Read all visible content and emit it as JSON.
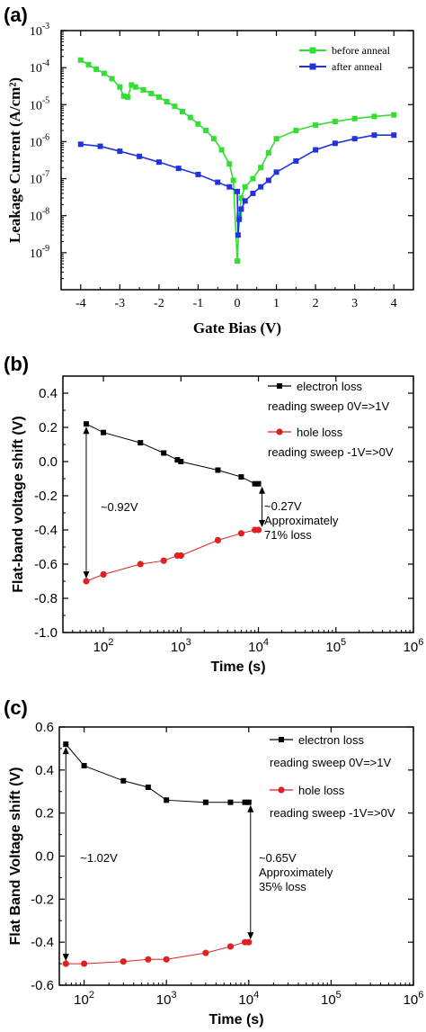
{
  "chart_data": [
    {
      "panel_label": "(a)",
      "type": "line",
      "xlabel": "Gate Bias (V)",
      "ylabel": "Leakage Current  (A/cm²)",
      "xlim": [
        -4.5,
        4.5
      ],
      "ylim": [
        1e-10,
        0.001
      ],
      "yscale": "log",
      "xticks": [
        -4,
        -3,
        -2,
        -1,
        0,
        1,
        2,
        3,
        4
      ],
      "yticks": [
        "10-3",
        "10-4",
        "10-5",
        "10-6",
        "10-7",
        "10-8",
        "10-9"
      ],
      "legend_position": "top-right",
      "series": [
        {
          "name": "before anneal",
          "color": "#33dd33",
          "marker": "square",
          "x": [
            -4,
            -3.8,
            -3.6,
            -3.4,
            -3.2,
            -3.0,
            -2.9,
            -2.8,
            -2.7,
            -2.6,
            -2.4,
            -2.2,
            -2.0,
            -1.8,
            -1.6,
            -1.4,
            -1.2,
            -1.0,
            -0.8,
            -0.6,
            -0.4,
            -0.2,
            -0.1,
            0.0,
            0.05,
            0.1,
            0.2,
            0.4,
            0.6,
            0.8,
            1.0,
            1.5,
            2.0,
            2.5,
            3.0,
            3.5,
            4.0
          ],
          "y": [
            0.00016,
            0.00012,
            9e-05,
            7e-05,
            5e-05,
            3e-05,
            1.7e-05,
            1.6e-05,
            3.4e-05,
            3e-05,
            2.5e-05,
            2e-05,
            1.6e-05,
            1.2e-05,
            9e-06,
            6.5e-06,
            4.5e-06,
            3e-06,
            2e-06,
            1.2e-06,
            6e-07,
            2.5e-07,
            9e-08,
            6e-10,
            1e-08,
            3e-08,
            6e-08,
            1e-07,
            2e-07,
            5e-07,
            1.2e-06,
            2e-06,
            2.8e-06,
            3.5e-06,
            4.2e-06,
            4.8e-06,
            5.3e-06
          ]
        },
        {
          "name": "after anneal",
          "color": "#2233dd",
          "marker": "square",
          "x": [
            -4,
            -3.5,
            -3.0,
            -2.5,
            -2.0,
            -1.5,
            -1.0,
            -0.5,
            -0.2,
            0.0,
            0.02,
            0.05,
            0.1,
            0.2,
            0.4,
            0.6,
            0.8,
            1.0,
            1.5,
            2.0,
            2.5,
            3.0,
            3.5,
            4.0
          ],
          "y": [
            8.5e-07,
            7.5e-07,
            5.5e-07,
            4e-07,
            2.8e-07,
            1.9e-07,
            1.3e-07,
            8e-08,
            6e-08,
            4.5e-08,
            3e-09,
            8e-09,
            1.5e-08,
            2.5e-08,
            4e-08,
            6e-08,
            9e-08,
            1.5e-07,
            3e-07,
            6e-07,
            9e-07,
            1.2e-06,
            1.5e-06,
            1.5e-06
          ]
        }
      ]
    },
    {
      "panel_label": "(b)",
      "type": "line",
      "xlabel": "Time (s)",
      "ylabel": "Flat-band voltage shift (V)",
      "xscale": "log",
      "xlim": [
        30,
        1000000.0
      ],
      "ylim": [
        -1.0,
        0.5
      ],
      "yticks": [
        "0.4",
        "0.2",
        "0.0",
        "-0.2",
        "-0.4",
        "-0.6",
        "-0.8",
        "-1.0"
      ],
      "xticks": [
        "10^2",
        "10^3",
        "10^4",
        "10^5",
        "10^6"
      ],
      "legend_position": "top-right",
      "series": [
        {
          "name": "electron loss",
          "color": "#000000",
          "marker": "square",
          "x": [
            60,
            100,
            300,
            600,
            900,
            1000,
            3000,
            6000,
            9000,
            10000
          ],
          "y": [
            0.22,
            0.17,
            0.11,
            0.05,
            0.01,
            0.0,
            -0.05,
            -0.09,
            -0.13,
            -0.13
          ]
        },
        {
          "name": "hole loss",
          "color": "#dd2222",
          "marker": "circle",
          "x": [
            60,
            100,
            300,
            600,
            900,
            1000,
            3000,
            6000,
            9000,
            10000
          ],
          "y": [
            -0.7,
            -0.66,
            -0.6,
            -0.58,
            -0.55,
            -0.55,
            -0.46,
            -0.42,
            -0.4,
            -0.4
          ]
        }
      ],
      "legend_notes": [
        "reading sweep 0V=>1V",
        "reading sweep -1V=>0V"
      ],
      "annotations": [
        "~0.92V",
        "~0.27V",
        "Approximately",
        "71% loss"
      ]
    },
    {
      "panel_label": "(c)",
      "type": "line",
      "xlabel": "Time (s)",
      "ylabel": "Flat Band Voltage shift (V)",
      "xscale": "log",
      "xlim": [
        50,
        1000000.0
      ],
      "ylim": [
        -0.6,
        0.6
      ],
      "yticks": [
        "0.6",
        "0.4",
        "0.2",
        "0.0",
        "-0.2",
        "-0.4",
        "-0.6"
      ],
      "xticks": [
        "10^2",
        "10^3",
        "10^4",
        "10^5",
        "10^6"
      ],
      "legend_position": "top-right",
      "series": [
        {
          "name": "electron loss",
          "color": "#000000",
          "marker": "square",
          "x": [
            60,
            100,
            300,
            600,
            1000,
            3000,
            6000,
            9000,
            10000
          ],
          "y": [
            0.52,
            0.42,
            0.35,
            0.32,
            0.26,
            0.25,
            0.25,
            0.25,
            0.25
          ]
        },
        {
          "name": "hole loss",
          "color": "#dd2222",
          "marker": "circle",
          "x": [
            60,
            100,
            300,
            600,
            1000,
            3000,
            6000,
            9000,
            10000
          ],
          "y": [
            -0.5,
            -0.5,
            -0.49,
            -0.48,
            -0.48,
            -0.45,
            -0.42,
            -0.4,
            -0.4
          ]
        }
      ],
      "legend_notes": [
        "reading sweep 0V=>1V",
        "reading sweep -1V=>0V"
      ],
      "annotations": [
        "~1.02V",
        "~0.65V",
        "Approximately",
        "35% loss"
      ]
    }
  ]
}
